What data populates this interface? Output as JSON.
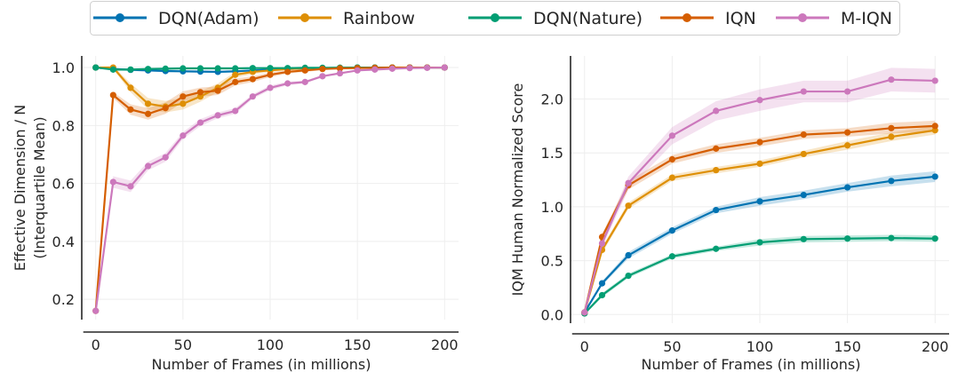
{
  "legend": {
    "items": [
      {
        "label": "DQN(Adam)",
        "color": "#0173b2"
      },
      {
        "label": "Rainbow",
        "color": "#de8f05"
      },
      {
        "label": "DQN(Nature)",
        "color": "#029e73"
      },
      {
        "label": "IQN",
        "color": "#d55e00"
      },
      {
        "label": "M-IQN",
        "color": "#cc78bc"
      }
    ],
    "placement": "top-center"
  },
  "chart_data": [
    {
      "type": "line",
      "xlabel": "Number of Frames (in millions)",
      "ylabel_lines": [
        "Effective Dimension / N",
        "(Interquartile Mean)"
      ],
      "xlim": [
        -8,
        208
      ],
      "ylim": [
        0.13,
        1.04
      ],
      "xticks": [
        0,
        50,
        100,
        150,
        200
      ],
      "xtick_labels": [
        "0",
        "50",
        "100",
        "150",
        "200"
      ],
      "yticks": [
        0.2,
        0.4,
        0.6,
        0.8,
        1.0
      ],
      "ytick_labels": [
        "0.2",
        "0.4",
        "0.6",
        "0.8",
        "1.0"
      ],
      "grid": true,
      "series": [
        {
          "name": "DQN(Adam)",
          "color": "#0173b2",
          "x": [
            0,
            10,
            20,
            30,
            40,
            50,
            60,
            70,
            80,
            90,
            100,
            110,
            120,
            130,
            140,
            150,
            160,
            170,
            180,
            190,
            200
          ],
          "y": [
            1.0,
            0.995,
            0.992,
            0.99,
            0.988,
            0.987,
            0.986,
            0.985,
            0.987,
            0.99,
            0.993,
            0.995,
            0.997,
            0.998,
            0.999,
            1.0,
            1.0,
            1.0,
            1.0,
            1.0,
            1.0
          ],
          "band": [
            0.003,
            0.004,
            0.004,
            0.004,
            0.004,
            0.004,
            0.004,
            0.004,
            0.004,
            0.003,
            0.003,
            0.003,
            0.002,
            0.002,
            0.001,
            0.001,
            0.001,
            0.001,
            0.001,
            0.001,
            0.001
          ]
        },
        {
          "name": "Rainbow",
          "color": "#de8f05",
          "x": [
            0,
            10,
            20,
            30,
            40,
            50,
            60,
            70,
            80,
            90,
            100,
            110,
            120,
            130,
            140,
            150,
            160,
            170,
            180,
            190,
            200
          ],
          "y": [
            1.0,
            1.0,
            0.93,
            0.875,
            0.865,
            0.875,
            0.9,
            0.93,
            0.975,
            0.985,
            0.99,
            0.995,
            0.997,
            0.998,
            0.999,
            1.0,
            1.0,
            1.0,
            1.0,
            1.0,
            1.0
          ],
          "band": [
            0.003,
            0.005,
            0.015,
            0.02,
            0.02,
            0.02,
            0.018,
            0.015,
            0.01,
            0.008,
            0.006,
            0.004,
            0.003,
            0.002,
            0.002,
            0.001,
            0.001,
            0.001,
            0.001,
            0.001,
            0.001
          ]
        },
        {
          "name": "DQN(Nature)",
          "color": "#029e73",
          "x": [
            0,
            10,
            20,
            30,
            40,
            50,
            60,
            70,
            80,
            90,
            100,
            110,
            120,
            130,
            140,
            150,
            160,
            170,
            180,
            190,
            200
          ],
          "y": [
            1.0,
            0.993,
            0.993,
            0.995,
            0.996,
            0.997,
            0.997,
            0.997,
            0.997,
            0.998,
            0.998,
            0.998,
            0.999,
            0.999,
            0.999,
            1.0,
            1.0,
            1.0,
            1.0,
            1.0,
            1.0
          ],
          "band": [
            0.003,
            0.004,
            0.004,
            0.003,
            0.003,
            0.003,
            0.003,
            0.003,
            0.003,
            0.002,
            0.002,
            0.002,
            0.002,
            0.001,
            0.001,
            0.001,
            0.001,
            0.001,
            0.001,
            0.001,
            0.001
          ]
        },
        {
          "name": "IQN",
          "color": "#d55e00",
          "x": [
            0,
            10,
            20,
            30,
            40,
            50,
            60,
            70,
            80,
            90,
            100,
            110,
            120,
            130,
            140,
            150,
            160,
            170,
            180,
            190,
            200
          ],
          "y": [
            0.16,
            0.905,
            0.855,
            0.84,
            0.86,
            0.9,
            0.915,
            0.92,
            0.95,
            0.96,
            0.975,
            0.985,
            0.99,
            0.995,
            0.997,
            0.998,
            0.999,
            1.0,
            1.0,
            1.0,
            1.0
          ],
          "band": [
            0.005,
            0.01,
            0.018,
            0.02,
            0.02,
            0.018,
            0.016,
            0.015,
            0.012,
            0.01,
            0.008,
            0.006,
            0.005,
            0.004,
            0.003,
            0.002,
            0.002,
            0.001,
            0.001,
            0.001,
            0.001
          ]
        },
        {
          "name": "M-IQN",
          "color": "#cc78bc",
          "x": [
            0,
            10,
            20,
            30,
            40,
            50,
            60,
            70,
            80,
            90,
            100,
            110,
            120,
            130,
            140,
            150,
            160,
            170,
            180,
            190,
            200
          ],
          "y": [
            0.16,
            0.605,
            0.59,
            0.66,
            0.69,
            0.765,
            0.81,
            0.835,
            0.85,
            0.9,
            0.93,
            0.945,
            0.95,
            0.97,
            0.98,
            0.99,
            0.993,
            0.996,
            0.998,
            0.999,
            1.0
          ],
          "band": [
            0.005,
            0.02,
            0.02,
            0.015,
            0.015,
            0.012,
            0.012,
            0.01,
            0.01,
            0.008,
            0.008,
            0.006,
            0.005,
            0.004,
            0.003,
            0.002,
            0.002,
            0.002,
            0.001,
            0.001,
            0.001
          ]
        }
      ]
    },
    {
      "type": "line",
      "xlabel": "Number of Frames (in millions)",
      "ylabel_lines": [
        "IQM Human Normalized Score"
      ],
      "xlim": [
        -8,
        208
      ],
      "ylim": [
        -0.08,
        2.4
      ],
      "xticks": [
        0,
        50,
        100,
        150,
        200
      ],
      "xtick_labels": [
        "0",
        "50",
        "100",
        "150",
        "200"
      ],
      "yticks": [
        0.0,
        0.5,
        1.0,
        1.5,
        2.0
      ],
      "ytick_labels": [
        "0.0",
        "0.5",
        "1.0",
        "1.5",
        "2.0"
      ],
      "grid": true,
      "series": [
        {
          "name": "DQN(Adam)",
          "color": "#0173b2",
          "x": [
            0,
            10,
            25,
            50,
            75,
            100,
            125,
            150,
            175,
            200
          ],
          "y": [
            0.02,
            0.29,
            0.55,
            0.78,
            0.97,
            1.05,
            1.11,
            1.18,
            1.24,
            1.28
          ],
          "band": [
            0.01,
            0.02,
            0.03,
            0.03,
            0.03,
            0.04,
            0.04,
            0.04,
            0.05,
            0.05
          ]
        },
        {
          "name": "Rainbow",
          "color": "#de8f05",
          "x": [
            0,
            10,
            25,
            50,
            75,
            100,
            125,
            150,
            175,
            200
          ],
          "y": [
            0.02,
            0.6,
            1.01,
            1.27,
            1.34,
            1.4,
            1.49,
            1.57,
            1.65,
            1.71
          ],
          "band": [
            0.01,
            0.03,
            0.03,
            0.03,
            0.03,
            0.03,
            0.03,
            0.04,
            0.04,
            0.04
          ]
        },
        {
          "name": "DQN(Nature)",
          "color": "#029e73",
          "x": [
            0,
            10,
            25,
            50,
            75,
            100,
            125,
            150,
            175,
            200
          ],
          "y": [
            0.01,
            0.18,
            0.36,
            0.54,
            0.61,
            0.67,
            0.7,
            0.705,
            0.71,
            0.705
          ],
          "band": [
            0.01,
            0.02,
            0.02,
            0.02,
            0.02,
            0.03,
            0.03,
            0.03,
            0.03,
            0.03
          ]
        },
        {
          "name": "IQN",
          "color": "#d55e00",
          "x": [
            0,
            10,
            25,
            50,
            75,
            100,
            125,
            150,
            175,
            200
          ],
          "y": [
            0.02,
            0.72,
            1.2,
            1.44,
            1.54,
            1.6,
            1.67,
            1.69,
            1.73,
            1.75
          ],
          "band": [
            0.01,
            0.03,
            0.04,
            0.04,
            0.04,
            0.04,
            0.04,
            0.04,
            0.05,
            0.05
          ]
        },
        {
          "name": "M-IQN",
          "color": "#cc78bc",
          "x": [
            0,
            10,
            25,
            50,
            75,
            100,
            125,
            150,
            175,
            200
          ],
          "y": [
            0.02,
            0.66,
            1.22,
            1.66,
            1.89,
            1.99,
            2.07,
            2.07,
            2.18,
            2.17
          ],
          "band": [
            0.01,
            0.04,
            0.06,
            0.08,
            0.09,
            0.1,
            0.1,
            0.1,
            0.11,
            0.11
          ]
        }
      ]
    }
  ]
}
